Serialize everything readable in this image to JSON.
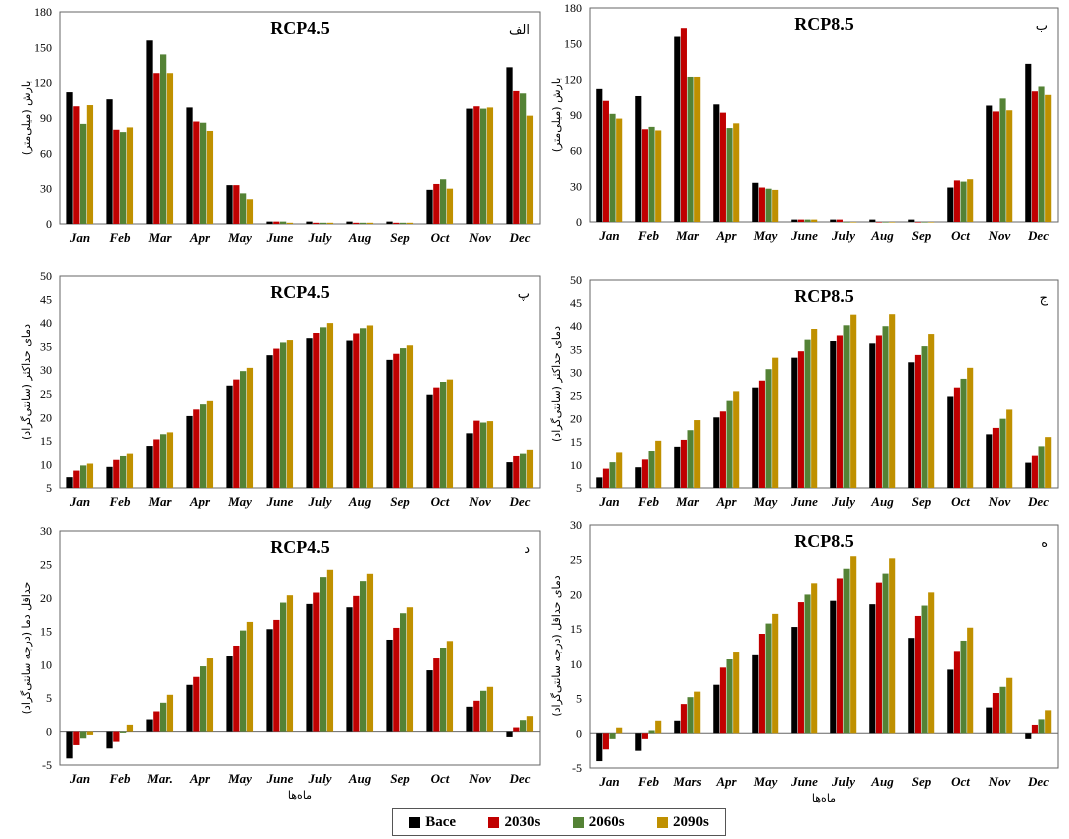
{
  "colors": {
    "Bace": "#000000",
    "2030s": "#c00000",
    "2060s": "#548235",
    "2090s": "#bf9000"
  },
  "legend": {
    "items": [
      "Bace",
      "2030s",
      "2060s",
      "2090s"
    ]
  },
  "chart_data": [
    {
      "type": "bar",
      "title": "RCP4.5",
      "panel_label": "الف",
      "ylabel": "بارش (میلی‌متر)",
      "xlabel": "",
      "ylim": [
        0,
        180
      ],
      "yticks": [
        0,
        30,
        60,
        90,
        120,
        150,
        180
      ],
      "categories": [
        "Jan",
        "Feb",
        "Mar",
        "Apr",
        "May",
        "June",
        "July",
        "Aug",
        "Sep",
        "Oct",
        "Nov",
        "Dec"
      ],
      "series": [
        {
          "name": "Bace",
          "values": [
            112,
            106,
            156,
            99,
            33,
            2,
            2,
            2,
            2,
            29,
            98,
            133
          ]
        },
        {
          "name": "2030s",
          "values": [
            100,
            80,
            128,
            87,
            33,
            2,
            1,
            1,
            1,
            34,
            100,
            113
          ]
        },
        {
          "name": "2060s",
          "values": [
            85,
            78,
            144,
            86,
            26,
            2,
            1,
            1,
            1,
            38,
            98,
            111
          ]
        },
        {
          "name": "2090s",
          "values": [
            101,
            82,
            128,
            79,
            21,
            1,
            1,
            1,
            1,
            30,
            99,
            92
          ]
        }
      ]
    },
    {
      "type": "bar",
      "title": "RCP8.5",
      "panel_label": "ب",
      "ylabel": "بارش (میلی‌متر)",
      "xlabel": "",
      "ylim": [
        0,
        180
      ],
      "yticks": [
        0,
        30,
        60,
        90,
        120,
        150,
        180
      ],
      "categories": [
        "Jan",
        "Feb",
        "Mar",
        "Apr",
        "May",
        "June",
        "July",
        "Aug",
        "Sep",
        "Oct",
        "Nov",
        "Dec"
      ],
      "series": [
        {
          "name": "Bace",
          "values": [
            112,
            106,
            156,
            99,
            33,
            2,
            2,
            2,
            2,
            29,
            98,
            133
          ]
        },
        {
          "name": "2030s",
          "values": [
            102,
            78,
            163,
            92,
            29,
            2,
            2,
            0,
            0,
            35,
            93,
            110
          ]
        },
        {
          "name": "2060s",
          "values": [
            91,
            80,
            122,
            79,
            28,
            2,
            0,
            0,
            0,
            34,
            104,
            114
          ]
        },
        {
          "name": "2090s",
          "values": [
            87,
            77,
            122,
            83,
            27,
            2,
            0,
            0,
            0,
            36,
            94,
            107
          ]
        }
      ]
    },
    {
      "type": "bar",
      "title": "RCP4.5",
      "panel_label": "پ",
      "ylabel": "دمای حداکثر (سانتی‌گراد)",
      "xlabel": "",
      "ylim": [
        5,
        50
      ],
      "yticks": [
        5,
        10,
        15,
        20,
        25,
        30,
        35,
        40,
        45,
        50
      ],
      "categories": [
        "Jan",
        "Feb",
        "Mar",
        "Apr",
        "May",
        "June",
        "July",
        "Aug",
        "Sep",
        "Oct",
        "Nov",
        "Dec"
      ],
      "series": [
        {
          "name": "Bace",
          "values": [
            7.3,
            9.5,
            13.9,
            20.3,
            26.7,
            33.2,
            36.8,
            36.3,
            32.2,
            24.8,
            16.6,
            10.5
          ]
        },
        {
          "name": "2030s",
          "values": [
            8.7,
            11.0,
            15.3,
            21.7,
            28.0,
            34.6,
            37.9,
            37.8,
            33.5,
            26.3,
            19.3,
            11.8
          ]
        },
        {
          "name": "2060s",
          "values": [
            9.8,
            11.8,
            16.4,
            22.8,
            29.8,
            35.9,
            39.1,
            38.9,
            34.7,
            27.5,
            18.9,
            12.3
          ]
        },
        {
          "name": "2090s",
          "values": [
            10.2,
            12.3,
            16.8,
            23.5,
            30.5,
            36.4,
            40.0,
            39.5,
            35.3,
            28.0,
            19.2,
            13.1
          ]
        }
      ]
    },
    {
      "type": "bar",
      "title": "RCP8.5",
      "panel_label": "ج",
      "ylabel": "دمای حداکثر (سانتی‌گراد)",
      "xlabel": "",
      "ylim": [
        5,
        50
      ],
      "yticks": [
        5,
        10,
        15,
        20,
        25,
        30,
        35,
        40,
        45,
        50
      ],
      "categories": [
        "Jan",
        "Feb",
        "Mar",
        "Apr",
        "May",
        "June",
        "July",
        "Aug",
        "Sep",
        "Oct",
        "Nov",
        "Dec"
      ],
      "series": [
        {
          "name": "Bace",
          "values": [
            7.3,
            9.5,
            13.9,
            20.3,
            26.7,
            33.2,
            36.8,
            36.3,
            32.2,
            24.8,
            16.6,
            10.5
          ]
        },
        {
          "name": "2030s",
          "values": [
            9.2,
            11.2,
            15.4,
            21.6,
            28.2,
            34.6,
            38.0,
            38.0,
            33.8,
            26.7,
            18.0,
            12.0
          ]
        },
        {
          "name": "2060s",
          "values": [
            10.6,
            13.0,
            17.5,
            23.9,
            30.7,
            37.1,
            40.2,
            40.0,
            35.7,
            28.6,
            20.0,
            14.0
          ]
        },
        {
          "name": "2090s",
          "values": [
            12.7,
            15.2,
            19.7,
            25.9,
            33.2,
            39.4,
            42.5,
            42.6,
            38.3,
            31.0,
            22.0,
            16.0
          ]
        }
      ]
    },
    {
      "type": "bar",
      "title": "RCP4.5",
      "panel_label": "د",
      "ylabel": "حداقل دما (درجه سانتی‌گراد)",
      "xlabel": "ماه‌ها",
      "ylim": [
        -5,
        30
      ],
      "yticks": [
        -5,
        0,
        5,
        10,
        15,
        20,
        25,
        30
      ],
      "categories": [
        "Jan",
        "Feb",
        "Mar.",
        "Apr",
        "May",
        "June",
        "July",
        "Aug",
        "Sep",
        "Oct",
        "Nov",
        "Dec"
      ],
      "series": [
        {
          "name": "Bace",
          "values": [
            -4.0,
            -2.5,
            1.8,
            7.0,
            11.3,
            15.3,
            19.1,
            18.6,
            13.7,
            9.2,
            3.7,
            -0.8
          ]
        },
        {
          "name": "2030s",
          "values": [
            -2.0,
            -1.5,
            3.0,
            8.2,
            12.8,
            16.7,
            20.8,
            20.3,
            15.5,
            11.0,
            4.6,
            0.6
          ]
        },
        {
          "name": "2060s",
          "values": [
            -1.0,
            -0.2,
            4.3,
            9.8,
            15.1,
            19.3,
            23.1,
            22.5,
            17.7,
            12.5,
            6.1,
            1.7
          ]
        },
        {
          "name": "2090s",
          "values": [
            -0.5,
            1.0,
            5.5,
            11.0,
            16.4,
            20.4,
            24.2,
            23.6,
            18.6,
            13.5,
            6.7,
            2.3
          ]
        }
      ]
    },
    {
      "type": "bar",
      "title": "RCP8.5",
      "panel_label": "ه",
      "ylabel": "دمای حداقل (درجه سانتی‌گراد)",
      "xlabel": "ماه‌ها",
      "ylim": [
        -5,
        30
      ],
      "yticks": [
        -5,
        0,
        5,
        10,
        15,
        20,
        25,
        30
      ],
      "categories": [
        "Jan",
        "Feb",
        "Mars",
        "Apr",
        "May",
        "June",
        "July",
        "Aug",
        "Sep",
        "Oct",
        "Nov",
        "Dec"
      ],
      "series": [
        {
          "name": "Bace",
          "values": [
            -4.0,
            -2.5,
            1.8,
            7.0,
            11.3,
            15.3,
            19.1,
            18.6,
            13.7,
            9.2,
            3.7,
            -0.8
          ]
        },
        {
          "name": "2030s",
          "values": [
            -2.3,
            -0.8,
            4.2,
            9.5,
            14.3,
            18.9,
            22.3,
            21.7,
            16.9,
            11.8,
            5.8,
            1.2
          ]
        },
        {
          "name": "2060s",
          "values": [
            -0.8,
            0.4,
            5.2,
            10.7,
            15.8,
            20.0,
            23.7,
            23.0,
            18.4,
            13.3,
            6.7,
            2.0
          ]
        },
        {
          "name": "2090s",
          "values": [
            0.8,
            1.8,
            6.0,
            11.7,
            17.2,
            21.6,
            25.5,
            25.2,
            20.3,
            15.2,
            8.0,
            3.3
          ]
        }
      ]
    }
  ]
}
